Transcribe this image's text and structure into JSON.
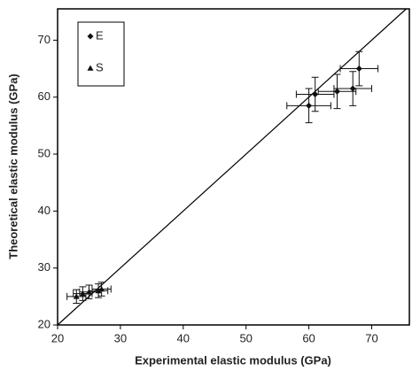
{
  "chart_data": {
    "type": "scatter",
    "x_label": "Experimental elastic modulus (GPa)",
    "y_label": "Theoretical elastic modulus (GPa)",
    "xlim": [
      20,
      76
    ],
    "ylim": [
      20,
      75.5
    ],
    "xticks": [
      20,
      30,
      40,
      50,
      60,
      70
    ],
    "yticks": [
      20,
      30,
      40,
      50,
      60,
      70
    ],
    "diagonal": true,
    "series": [
      {
        "name": "E",
        "marker": "diamond",
        "color": "#111",
        "x": [
          68,
          67,
          64.5,
          61,
          60
        ],
        "values": [
          65,
          61.5,
          61,
          60.5,
          58.5
        ],
        "x_errors": [
          3,
          3,
          3,
          3,
          3.5
        ],
        "y_errors": [
          3,
          3,
          3,
          3,
          3
        ]
      },
      {
        "name": "S",
        "marker": "triangle",
        "color": "#111",
        "x": [
          23,
          24,
          25,
          26.5,
          27
        ],
        "values": [
          25,
          25.5,
          25.8,
          26,
          26.3
        ],
        "x_errors": [
          1.5,
          1.5,
          1.5,
          1.5,
          1.5
        ],
        "y_errors": [
          1.2,
          1.2,
          1.2,
          1.2,
          1.2
        ]
      }
    ]
  }
}
